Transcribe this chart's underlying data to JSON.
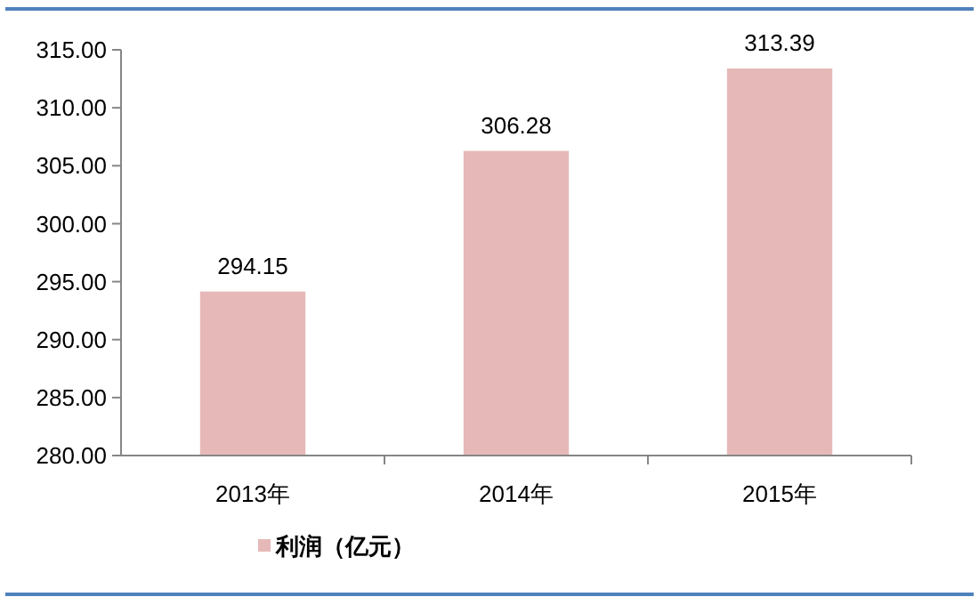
{
  "chart_data": {
    "type": "bar",
    "categories": [
      "2013年",
      "2014年",
      "2015年"
    ],
    "series": [
      {
        "name": "利润（亿元）",
        "color": "#e6b9b8",
        "values": [
          294.15,
          306.28,
          313.39
        ]
      }
    ],
    "ylim": [
      280,
      315
    ],
    "yticks": [
      {
        "value": 280,
        "label": "280.00"
      },
      {
        "value": 285,
        "label": "285.00"
      },
      {
        "value": 290,
        "label": "290.00"
      },
      {
        "value": 295,
        "label": "295.00"
      },
      {
        "value": 300,
        "label": "300.00"
      },
      {
        "value": 305,
        "label": "305.00"
      },
      {
        "value": 310,
        "label": "310.00"
      },
      {
        "value": 315,
        "label": "315.00"
      }
    ],
    "data_labels": true,
    "grid": false,
    "legend": "bottom left"
  }
}
